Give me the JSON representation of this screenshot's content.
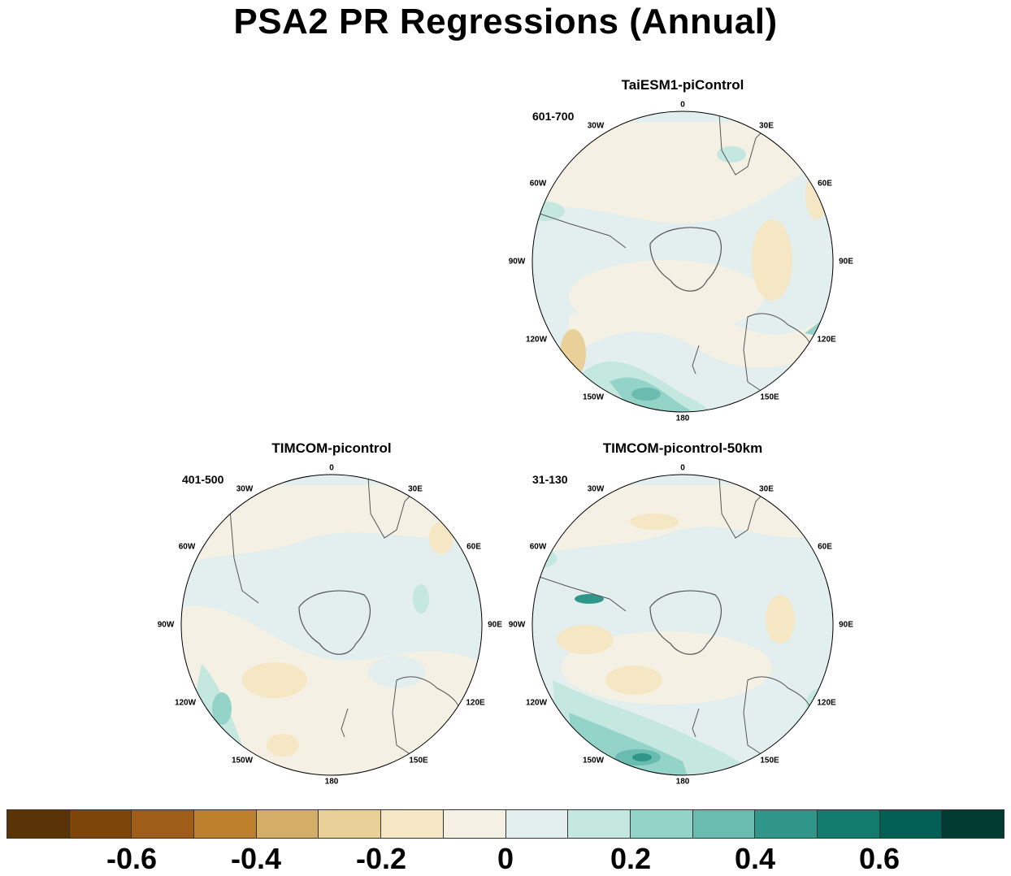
{
  "title": "PSA2 PR Regressions (Annual)",
  "panels": [
    {
      "id": "top-right",
      "title": "TaiESM1-piControl",
      "years": "601-700"
    },
    {
      "id": "bottom-left",
      "title": "TIMCOM-picontrol",
      "years": "401-500"
    },
    {
      "id": "bottom-right",
      "title": "TIMCOM-picontrol-50km",
      "years": "31-130"
    }
  ],
  "longitude_labels": [
    "0",
    "30E",
    "60E",
    "90E",
    "120E",
    "150E",
    "180",
    "150W",
    "120W",
    "90W",
    "60W",
    "30W"
  ],
  "colorbar": {
    "colors": [
      "#5a3306",
      "#7d4509",
      "#9e5d18",
      "#bd812e",
      "#d4ae66",
      "#e9d099",
      "#f5e7c4",
      "#f4f0e4",
      "#e2efee",
      "#c4e7e0",
      "#93d3c8",
      "#6bbcb0",
      "#30968a",
      "#137a6e",
      "#025f53",
      "#003c31"
    ],
    "tick_labels": [
      "-0.6",
      "-0.4",
      "-0.2",
      "0",
      "0.2",
      "0.4",
      "0.6"
    ]
  }
}
